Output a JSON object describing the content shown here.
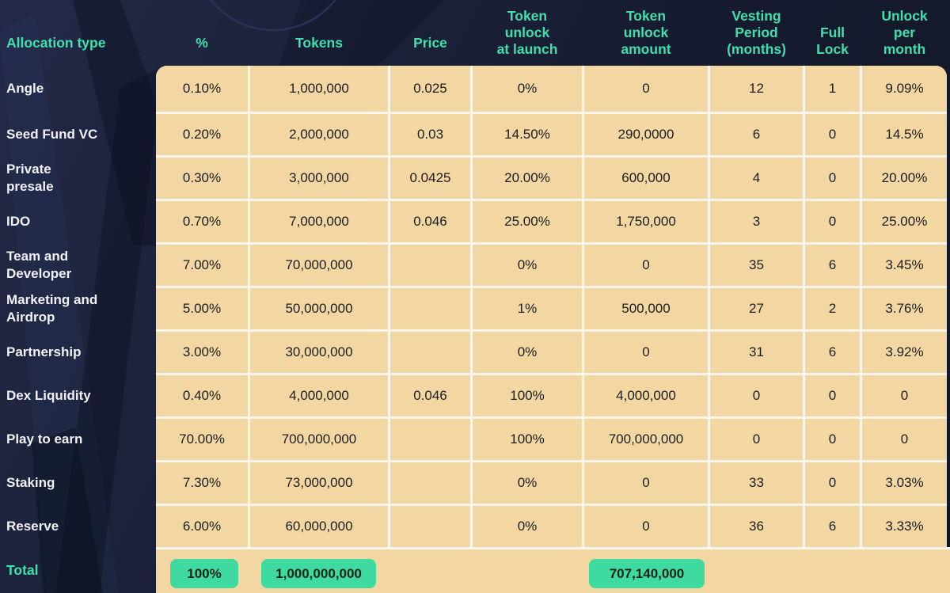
{
  "colors": {
    "background_navy": "#1B2138",
    "header_text": "#3FE0AE",
    "cell_background": "#F2D7A3",
    "grid_line": "#FAF6EC",
    "cell_text": "#1C1C1E",
    "row_label_text": "#F2F2F6",
    "total_pill": "#3EDA9F"
  },
  "headers": [
    "Allocation type",
    "%",
    "Tokens",
    "Price",
    "Token\nunlock\nat launch",
    "Token\nunlock\namount",
    "Vesting\nPeriod\n(months)",
    "Full\nLock",
    "Unlock\nper\nmonth"
  ],
  "total": {
    "label": "Total",
    "percent": "100%",
    "tokens": "1,000,000,000",
    "unlock_amount": "707,140,000"
  },
  "chart_data": {
    "type": "table",
    "columns": [
      "Allocation type",
      "%",
      "Tokens",
      "Price",
      "Token unlock at launch",
      "Token unlock amount",
      "Vesting Period (months)",
      "Full Lock",
      "Unlock per month"
    ],
    "rows": [
      [
        "Angle",
        "0.10%",
        "1,000,000",
        "0.025",
        "0%",
        "0",
        "12",
        "1",
        "9.09%"
      ],
      [
        "Seed Fund VC",
        "0.20%",
        "2,000,000",
        "0.03",
        "14.50%",
        "290,0000",
        "6",
        "0",
        "14.5%"
      ],
      [
        "Private\npresale",
        "0.30%",
        "3,000,000",
        "0.0425",
        "20.00%",
        "600,000",
        "4",
        "0",
        "20.00%"
      ],
      [
        "IDO",
        "0.70%",
        "7,000,000",
        "0.046",
        "25.00%",
        "1,750,000",
        "3",
        "0",
        "25.00%"
      ],
      [
        "Team and\nDeveloper",
        "7.00%",
        "70,000,000",
        "",
        "0%",
        "0",
        "35",
        "6",
        "3.45%"
      ],
      [
        "Marketing and\nAirdrop",
        "5.00%",
        "50,000,000",
        "",
        "1%",
        "500,000",
        "27",
        "2",
        "3.76%"
      ],
      [
        "Partnership",
        "3.00%",
        "30,000,000",
        "",
        "0%",
        "0",
        "31",
        "6",
        "3.92%"
      ],
      [
        "Dex Liquidity",
        "0.40%",
        "4,000,000",
        "0.046",
        "100%",
        "4,000,000",
        "0",
        "0",
        "0"
      ],
      [
        "Play to earn",
        "70.00%",
        "700,000,000",
        "",
        "100%",
        "700,000,000",
        "0",
        "0",
        "0"
      ],
      [
        "Staking",
        "7.30%",
        "73,000,000",
        "",
        "0%",
        "0",
        "33",
        "0",
        "3.03%"
      ],
      [
        "Reserve",
        "6.00%",
        "60,000,000",
        "",
        "0%",
        "0",
        "36",
        "6",
        "3.33%"
      ]
    ],
    "total_row": [
      "Total",
      "100%",
      "1,000,000,000",
      "",
      "",
      "707,140,000",
      "",
      "",
      ""
    ]
  }
}
